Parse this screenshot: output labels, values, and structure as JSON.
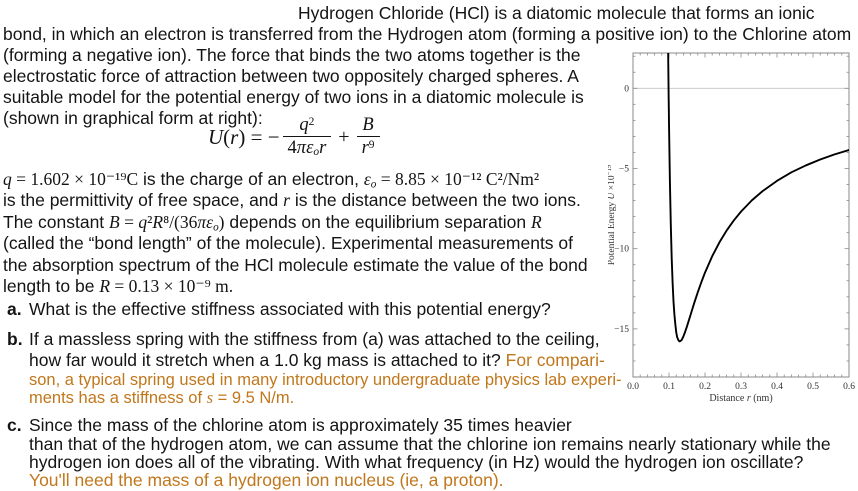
{
  "colors": {
    "text": "#141414",
    "hint": "#c1771c",
    "curve": "#000000",
    "frame": "#8a8a8a",
    "grid": "#c4c4c4",
    "tick_label": "#333333"
  },
  "intro": {
    "lines": [
      [
        {
          "t": "Hydrogen Chloride (HCl) is a diatomic molecule that forms an ionic"
        }
      ],
      [
        {
          "t": "bond, in which an electron is transferred from the Hydrogen atom (forming a positive ion) to the Chlorine atom"
        }
      ],
      [
        {
          "t": "(forming a negative ion).  The force that binds the two atoms together is the"
        }
      ],
      [
        {
          "t": "electrostatic force of attraction between two oppositely charged spheres.  A"
        }
      ],
      [
        {
          "t": "suitable model for the potential energy of two ions in a diatomic molecule is"
        }
      ],
      [
        {
          "t": "(shown in graphical form at right):"
        }
      ]
    ]
  },
  "equation": {
    "lhs": [
      {
        "t": "U",
        "f": "it"
      },
      {
        "t": "(",
        "f": "rm"
      },
      {
        "t": "r",
        "f": "it"
      },
      {
        "t": ") = −",
        "f": "rm"
      }
    ],
    "frac1": {
      "num": [
        {
          "t": "q",
          "f": "it"
        },
        {
          "t": "2",
          "f": "rm",
          "sup": true
        }
      ],
      "den": [
        {
          "t": "4",
          "f": "rm"
        },
        {
          "t": "πε",
          "f": "it"
        },
        {
          "t": "o",
          "f": "it",
          "sub": true
        },
        {
          "t": "r",
          "f": "it"
        }
      ]
    },
    "plus": [
      {
        "t": "+",
        "f": "rm"
      }
    ],
    "frac2": {
      "num": [
        {
          "t": "B",
          "f": "it"
        }
      ],
      "den": [
        {
          "t": "r",
          "f": "it"
        },
        {
          "t": "9",
          "f": "rm",
          "sup": true
        }
      ]
    }
  },
  "constants": {
    "lines": [
      [
        {
          "t": "q",
          "f": "it"
        },
        {
          "t": " = 1.602 × 10⁻¹⁹",
          "f": "rm"
        },
        {
          "t": "C",
          "f": "rm"
        },
        {
          "t": " is the charge of an electron, "
        },
        {
          "t": "ε",
          "f": "it"
        },
        {
          "t": "o",
          "f": "it",
          "sub": true
        },
        {
          "t": " = 8.85 × 10⁻¹² C²/Nm²",
          "f": "rm"
        }
      ],
      [
        {
          "t": "is the permittivity of free space, and "
        },
        {
          "t": "r",
          "f": "it"
        },
        {
          "t": " is the distance between the two ions."
        }
      ],
      [
        {
          "t": "The constant "
        },
        {
          "t": "B",
          "f": "it"
        },
        {
          "t": " = ",
          "f": "rm"
        },
        {
          "t": "q",
          "f": "it"
        },
        {
          "t": "²",
          "f": "rm"
        },
        {
          "t": "R",
          "f": "it"
        },
        {
          "t": "⁸",
          "f": "rm"
        },
        {
          "t": "/(36",
          "f": "rm"
        },
        {
          "t": "πε",
          "f": "it"
        },
        {
          "t": "o",
          "f": "it",
          "sub": true
        },
        {
          "t": ")",
          "f": "rm"
        },
        {
          "t": " depends on the equilibrium separation "
        },
        {
          "t": "R",
          "f": "it"
        }
      ],
      [
        {
          "t": "(called the “bond length” of the molecule).  Experimental measurements of"
        }
      ],
      [
        {
          "t": "the absorption spectrum of the HCl molecule estimate the value of the bond"
        }
      ],
      [
        {
          "t": "length to be "
        },
        {
          "t": "R",
          "f": "it"
        },
        {
          "t": " = 0.13 × 10⁻⁹ m.",
          "f": "rm"
        }
      ]
    ]
  },
  "part_a": {
    "lines": [
      [
        {
          "t": "a.",
          "lbl": true
        },
        {
          "t": "What is the effective stiffness associated with this potential energy?"
        }
      ]
    ]
  },
  "part_b": {
    "lines": [
      [
        {
          "t": "b.",
          "lbl": true
        },
        {
          "t": "If a massless spring with the stiffness from (a) was attached to the ceiling,"
        }
      ],
      [
        {
          "t": "how far would it stretch when a 1.0 kg mass is attached to it?  "
        },
        {
          "t": "For compari-",
          "c": "hint"
        }
      ],
      [
        {
          "t": "son, a typical spring used in many introductory undergraduate physics lab experi-",
          "c": "hint"
        }
      ],
      [
        {
          "t": "ments has a stiffness of ",
          "c": "hint"
        },
        {
          "t": "s",
          "f": "it",
          "c": "hint"
        },
        {
          "t": " = 9.5 N/m.",
          "c": "hint"
        }
      ]
    ]
  },
  "part_c": {
    "lines": [
      [
        {
          "t": "c.",
          "lbl": true
        },
        {
          "t": "Since the mass of the chlorine atom is approximately 35 times heavier"
        }
      ],
      [
        {
          "t": "than that of the hydrogen atom, we can assume that the chlorine ion remains nearly stationary while the"
        }
      ],
      [
        {
          "t": "hydrogen ion does all of the vibrating.  With what frequency (in Hz) would the hydrogen ion oscillate?"
        }
      ],
      [
        {
          "t": "You'll need the mass of a hydrogen ion nucleus (ie, a proton).",
          "c": "hint"
        }
      ]
    ]
  },
  "chart_data": {
    "type": "line",
    "title": "",
    "xlabel": "Distance r (nm)",
    "ylabel": "Potential Energy U ×10⁻¹⁹",
    "xlabel_segments": [
      {
        "t": "Distance ",
        "f": "rm"
      },
      {
        "t": "r",
        "f": "it"
      },
      {
        "t": " (nm)",
        "f": "rm"
      }
    ],
    "ylabel_segments": [
      {
        "t": "Potential Energy ",
        "f": "rm"
      },
      {
        "t": "U",
        "f": "it"
      },
      {
        "t": " ×10",
        "f": "rm"
      },
      {
        "t": "−19",
        "f": "rm",
        "sup": true
      }
    ],
    "xlim": [
      0.0,
      0.6
    ],
    "ylim": [
      -18.0,
      2.2
    ],
    "xticks": [
      0.0,
      0.1,
      0.2,
      0.3,
      0.4,
      0.5,
      0.6
    ],
    "xtick_labels": [
      "0.0",
      "0.1",
      "0.2",
      "0.3",
      "0.4",
      "0.5",
      "0.6"
    ],
    "yticks": [
      0,
      -5,
      -10,
      -15
    ],
    "ytick_labels": [
      "0",
      "−5",
      "−10",
      "−15"
    ],
    "x_minor_step": 0.02,
    "y_minor_step": 1,
    "gridlines_y": [
      0
    ],
    "grid": "zero-line-only",
    "legend": "none",
    "series": [
      {
        "name": "U(r) = −q²/(4πεₒr) + B/r⁹  (×10⁻¹⁹ J)",
        "points": [
          [
            0.0972,
            3.3
          ],
          [
            0.0976,
            2.3
          ],
          [
            0.098,
            1.5
          ],
          [
            0.0985,
            0.5
          ],
          [
            0.099,
            -0.5
          ],
          [
            0.0995,
            -1.3
          ],
          [
            0.1,
            -2.2
          ],
          [
            0.1025,
            -5.8
          ],
          [
            0.105,
            -8.5
          ],
          [
            0.1075,
            -10.6
          ],
          [
            0.11,
            -12.1
          ],
          [
            0.1125,
            -13.3
          ],
          [
            0.115,
            -14.1
          ],
          [
            0.1175,
            -14.7
          ],
          [
            0.12,
            -15.2
          ],
          [
            0.1225,
            -15.5
          ],
          [
            0.125,
            -15.65
          ],
          [
            0.1275,
            -15.75
          ],
          [
            0.13,
            -15.78
          ],
          [
            0.135,
            -15.7
          ],
          [
            0.14,
            -15.47
          ],
          [
            0.145,
            -15.17
          ],
          [
            0.15,
            -14.84
          ],
          [
            0.16,
            -14.12
          ],
          [
            0.17,
            -13.39
          ],
          [
            0.18,
            -12.71
          ],
          [
            0.19,
            -12.08
          ],
          [
            0.2,
            -11.49
          ],
          [
            0.22,
            -10.47
          ],
          [
            0.24,
            -9.61
          ],
          [
            0.26,
            -8.87
          ],
          [
            0.28,
            -8.24
          ],
          [
            0.3,
            -7.69
          ],
          [
            0.33,
            -6.99
          ],
          [
            0.36,
            -6.41
          ],
          [
            0.4,
            -5.77
          ],
          [
            0.44,
            -5.24
          ],
          [
            0.48,
            -4.81
          ],
          [
            0.52,
            -4.44
          ],
          [
            0.56,
            -4.12
          ],
          [
            0.6,
            -3.85
          ]
        ]
      }
    ],
    "annotations": {
      "minimum": {
        "r_nm": 0.13,
        "U": -15.8
      },
      "zero_crossing_r_nm": 0.099
    }
  }
}
